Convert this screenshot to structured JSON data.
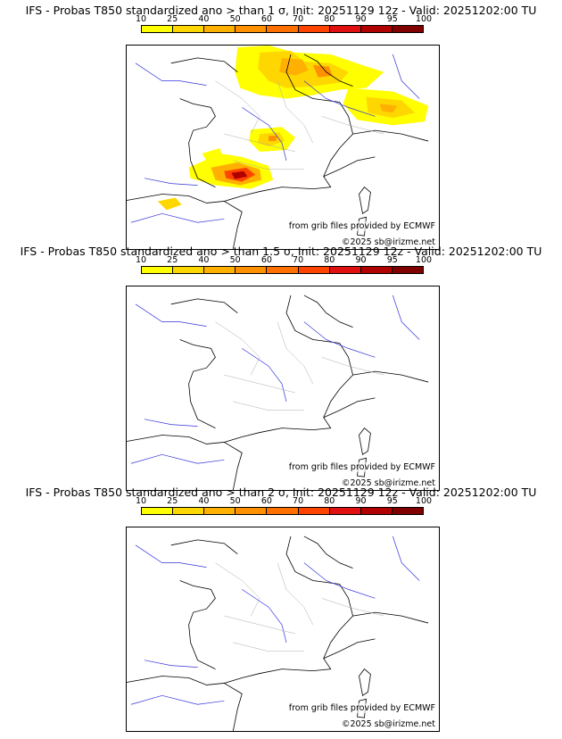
{
  "colorbar": {
    "ticks": [
      "10",
      "25",
      "40",
      "50",
      "60",
      "70",
      "80",
      "90",
      "95",
      "100"
    ],
    "colors": [
      "#ffff00",
      "#ffd700",
      "#ffb000",
      "#ff9000",
      "#ff7000",
      "#ff4400",
      "#e01010",
      "#b00000",
      "#800000",
      "#500000"
    ]
  },
  "panels": [
    {
      "title": "IFS - Probas T850  standardized ano > than 1 σ, Init: 20251129 12z - Valid: 20251202:00 TU",
      "source_note": "from grib files provided by ECMWF",
      "copyright": "©2025 sb@irizme.net",
      "has_anomaly_areas": true
    },
    {
      "title": "IFS - Probas T850  standardized ano > than 1.5 σ, Init: 20251129 12z - Valid: 20251202:00 TU",
      "source_note": "from grib files provided by ECMWF",
      "copyright": "©2025 sb@irizme.net",
      "has_anomaly_areas": false
    },
    {
      "title": "IFS - Probas T850  standardized ano > than 2 σ, Init: 20251129 12z - Valid: 20251202:00 TU",
      "source_note": "from grib files provided by ECMWF",
      "copyright": "©2025 sb@irizme.net",
      "has_anomaly_areas": false
    }
  ]
}
